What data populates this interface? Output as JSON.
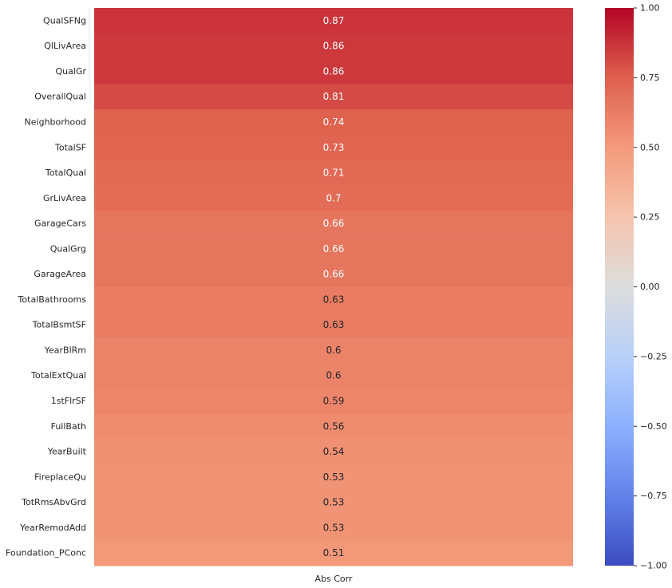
{
  "chart_data": {
    "type": "heatmap",
    "columns": [
      "Abs Corr"
    ],
    "rows": [
      "QualSFNg",
      "QlLivArea",
      "QualGr",
      "OverallQual",
      "Neighborhood",
      "TotalSF",
      "TotalQual",
      "GrLivArea",
      "GarageCars",
      "QualGrg",
      "GarageArea",
      "TotalBathrooms",
      "TotalBsmtSF",
      "YearBlRm",
      "TotalExtQual",
      "1stFlrSF",
      "FullBath",
      "YearBuilt",
      "FireplaceQu",
      "TotRmsAbvGrd",
      "YearRemodAdd",
      "Foundation_PConc"
    ],
    "values": [
      0.87,
      0.86,
      0.86,
      0.81,
      0.74,
      0.73,
      0.71,
      0.7,
      0.66,
      0.66,
      0.66,
      0.63,
      0.63,
      0.6,
      0.6,
      0.59,
      0.56,
      0.54,
      0.53,
      0.53,
      0.53,
      0.51
    ],
    "value_labels": [
      "0.87",
      "0.86",
      "0.86",
      "0.81",
      "0.74",
      "0.73",
      "0.71",
      "0.7",
      "0.66",
      "0.66",
      "0.66",
      "0.63",
      "0.63",
      "0.6",
      "0.6",
      "0.59",
      "0.56",
      "0.54",
      "0.53",
      "0.53",
      "0.53",
      "0.51"
    ],
    "colormap": "coolwarm",
    "vmin": -1.0,
    "vmax": 1.0,
    "colorbar_ticks": [
      "1.00",
      "0.75",
      "0.50",
      "0.25",
      "0.00",
      "−0.25",
      "−0.50",
      "−0.75",
      "−1.00"
    ],
    "colorbar_tick_values": [
      1.0,
      0.75,
      0.5,
      0.25,
      0.0,
      -0.25,
      -0.5,
      -0.75,
      -1.0
    ]
  }
}
